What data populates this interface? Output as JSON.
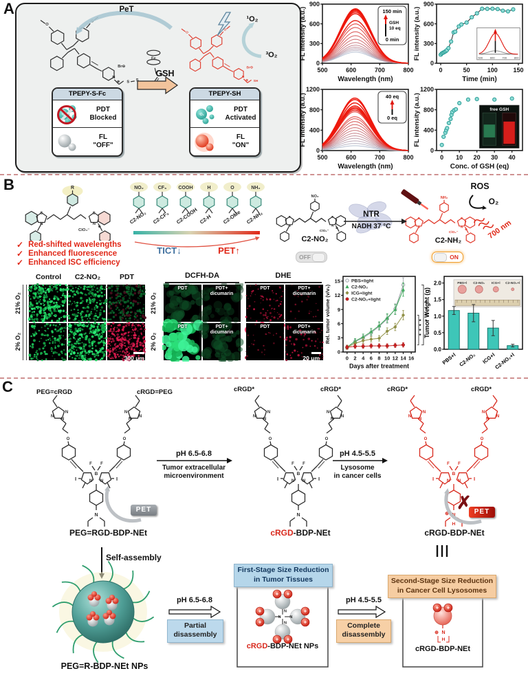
{
  "figure": {
    "panel_a_label": "A",
    "panel_b_label": "B",
    "panel_c_label": "C"
  },
  "atoms": {
    "s": "S",
    "n": "N",
    "b": "B",
    "f": "F",
    "i": "I",
    "o": "O",
    "fe": "Fe",
    "br": "Br⊖",
    "sh": "SH",
    "plus": "⊕",
    "clo4": "ClO₄⁻",
    "r": "R",
    "no2": "NO₂",
    "nh2": "NH₂",
    "h": "H"
  },
  "colors": {
    "accent_red": "#e02818",
    "teal": "#3ec6b8",
    "cyan_marker": "#8fdcd6",
    "peach_arrow": "#f2c49c",
    "card_header": "#ccd9e3",
    "blue_box": "#bcd9ec",
    "orange_box": "#f7d0a6"
  },
  "panel_a": {
    "pet": "PeT",
    "gsh": "GSH",
    "singlet_o2": "¹O₂",
    "triplet_o2": "³O₂",
    "left_card": {
      "title": "TPEPY-S-Fc",
      "pdt": "PDT",
      "pdt_state": "Blocked",
      "fl": "FL",
      "fl_state": "\"OFF\"",
      "o2": "¹O₂"
    },
    "right_card": {
      "title": "TPEPY-SH",
      "pdt": "PDT",
      "pdt_state": "Activated",
      "fl": "FL",
      "fl_state": "\"ON\"",
      "o2": "¹O₂"
    }
  },
  "panel_b": {
    "check": "✓",
    "features": [
      "Red-shifted wavelengths",
      "Enhanced fluorescence",
      "Enhanced ISC efficiency"
    ],
    "substituents": [
      {
        "group": "NO₂",
        "name": "C2-NO₂"
      },
      {
        "group": "CF₃",
        "name": "C2-CF₃"
      },
      {
        "group": "COOH",
        "name": "C2-COOH"
      },
      {
        "group": "H",
        "name": "C2-H"
      },
      {
        "group": "O",
        "name": "C2-OMe"
      },
      {
        "group": "NH₂",
        "name": "C2-NH₂"
      }
    ],
    "tict": "TICT",
    "tict_arrow": "↓",
    "pet": "PET",
    "pet_arrow": "↑",
    "scheme": {
      "left_name": "C2-NO₂",
      "right_name": "C2-NH₂",
      "enzyme": "NTR",
      "condition": "NADH 37 °C",
      "off": "OFF",
      "on": "ON",
      "ros": "ROS",
      "o2": "O₂",
      "nm": "700 nm"
    },
    "viability": {
      "columns": [
        "Control",
        "C2-NO₂",
        "PDT"
      ],
      "rows": [
        "21% O₂",
        "2% O₂"
      ],
      "scale": "300 μm"
    },
    "ros_imaging": {
      "groups": [
        "DCFH-DA",
        "DHE"
      ],
      "cell_labels": [
        "PDT",
        "PDT+\ndicumarin"
      ],
      "rows": [
        "21% O₂",
        "2% O₂"
      ],
      "scale": "20 μm"
    }
  },
  "panel_c": {
    "s1": {
      "left_tag": "PEG=cRGD",
      "right_tag": "cRGD=PEG",
      "name": "PEG=RGD-BDP-NEt",
      "pet": "PET"
    },
    "s2": {
      "tag": "cRGD*",
      "name_red": "cRGD",
      "name_black": "-BDP-NEt"
    },
    "s3": {
      "tag": "cRGD*",
      "name": "cRGD-BDP-NEt",
      "pet": "PET",
      "cross": "✗"
    },
    "arrow1": {
      "ph": "pH 6.5-6.8",
      "line1": "Tumor extracellular",
      "line2": "microenvironment"
    },
    "arrow2": {
      "ph": "pH 4.5-5.5",
      "line1": "Lysosome",
      "line2": "in cancer cells"
    },
    "self_assembly": "Self-assembly",
    "np_name": "PEG=R-BDP-NEt  NPs",
    "arrow3": {
      "ph": "pH 6.5-6.8",
      "box": "Partial\ndisassembly"
    },
    "arrow4": {
      "ph": "pH 4.5-5.5",
      "box": "Complete\ndisassembly"
    },
    "stage1": {
      "title": "First-Stage Size Reduction\nin Tumor Tissues",
      "label_red": "cRGD",
      "label_black": "-BDP-NEt  NPs"
    },
    "stage2": {
      "title": "Second-Stage Size Reduction\nin Cancer Cell Lysosomes",
      "label": "cRGD-BDP-NEt"
    }
  },
  "chart_data": [
    {
      "id": "a1",
      "type": "line",
      "subtype": "spectra",
      "xlabel": "Wavelength (nm)",
      "ylabel": "FL intensity (a.u.)",
      "xlim": [
        500,
        800
      ],
      "ylim": [
        0,
        900
      ],
      "xticks": [
        500,
        600,
        700,
        800
      ],
      "yticks": [
        0,
        300,
        600,
        900
      ],
      "peak_nm": 615,
      "sigma_nm": 53,
      "series_peak_heights": [
        170,
        195,
        220,
        245,
        275,
        315,
        365,
        420,
        480,
        545,
        600,
        650,
        755,
        780,
        800,
        815,
        830
      ],
      "legend": {
        "top": "150 min",
        "side1": "GSH",
        "side2": "10 eq",
        "bottom": "0 min"
      }
    },
    {
      "id": "a2",
      "type": "scatter",
      "connect": true,
      "xlabel": "Time (min)",
      "ylabel": "FL intensity (a.u.)",
      "xlim": [
        -8,
        158
      ],
      "ylim": [
        0,
        900
      ],
      "xticks": [
        0,
        50,
        100,
        150
      ],
      "yticks": [
        0,
        300,
        600,
        900
      ],
      "x": [
        0,
        2,
        4,
        6,
        8,
        10,
        12,
        15,
        20,
        25,
        28,
        35,
        40,
        50,
        60,
        70,
        80,
        90,
        100,
        110,
        120,
        130,
        140
      ],
      "y": [
        130,
        148,
        158,
        165,
        175,
        185,
        200,
        230,
        330,
        470,
        480,
        560,
        590,
        620,
        700,
        760,
        830,
        828,
        830,
        825,
        800,
        790,
        820
      ],
      "inset": {
        "type": "spectra_arrow",
        "xticks": [
          500,
          600,
          700,
          800
        ]
      }
    },
    {
      "id": "a3",
      "type": "line",
      "subtype": "spectra",
      "xlabel": "Wavelength (nm)",
      "ylabel": "FL intensity (a.u.)",
      "xlim": [
        500,
        800
      ],
      "ylim": [
        0,
        1200
      ],
      "xticks": [
        500,
        600,
        700,
        800
      ],
      "yticks": [
        0,
        400,
        800,
        1200
      ],
      "peak_nm": 613,
      "sigma_nm": 55,
      "series_peak_heights": [
        95,
        140,
        190,
        240,
        290,
        340,
        395,
        450,
        510,
        570,
        625,
        665,
        760,
        790,
        820,
        845,
        875,
        935,
        1000,
        1030
      ],
      "legend": {
        "top": "40 eq",
        "bottom": "0 eq"
      }
    },
    {
      "id": "a4",
      "type": "scatter",
      "connect": false,
      "xlabel": "Conc. of GSH (eq)",
      "ylabel": "FL intensity (a.u.)",
      "xlim": [
        -3,
        46
      ],
      "ylim": [
        0,
        1200
      ],
      "xticks": [
        0,
        10,
        20,
        30,
        40
      ],
      "yticks": [
        0,
        400,
        800,
        1200
      ],
      "x": [
        0,
        1,
        2,
        2.5,
        3,
        4,
        5,
        5.5,
        6,
        7,
        8,
        10,
        15,
        20,
        30,
        40
      ],
      "y": [
        110,
        270,
        350,
        400,
        440,
        540,
        620,
        700,
        755,
        790,
        810,
        930,
        1000,
        1010,
        1000,
        1020
      ],
      "inset": {
        "type": "cuvettes",
        "label": "free GSH"
      }
    },
    {
      "id": "b1",
      "type": "line",
      "xlabel": "Days after treatment",
      "ylabel": "Rel. tumor volume (v/v₀)",
      "xlim": [
        -1,
        17
      ],
      "ylim": [
        0,
        16
      ],
      "xticks": [
        0,
        2,
        4,
        6,
        8,
        10,
        12,
        14,
        16
      ],
      "yticks": [
        0,
        3,
        6,
        9,
        12,
        15
      ],
      "x": [
        0,
        2,
        4,
        6,
        8,
        10,
        12,
        14
      ],
      "series": [
        {
          "name": "PBS+light",
          "color": "#9aa0a6",
          "marker": "circle-open",
          "values": [
            1,
            2.2,
            3.0,
            4.1,
            5.4,
            7.0,
            9.1,
            14.2
          ]
        },
        {
          "name": "C2-NO₂",
          "color": "#3faa5c",
          "marker": "triangle",
          "values": [
            1,
            2.3,
            3.2,
            4.3,
            5.6,
            7.2,
            9.0,
            13.2
          ]
        },
        {
          "name": "ICG+light",
          "color": "#8f8f45",
          "marker": "diamond",
          "values": [
            1,
            1.8,
            2.4,
            2.7,
            2.9,
            4.4,
            5.3,
            7.8
          ]
        },
        {
          "name": "C2-NO₂+light",
          "color": "#cc2020",
          "marker": "circle",
          "values": [
            1,
            1.2,
            1.2,
            1.3,
            1.3,
            1.3,
            1.4,
            1.5
          ]
        }
      ],
      "significance": [
        "****",
        "****"
      ]
    },
    {
      "id": "b2",
      "type": "bar",
      "ylabel": "Tumor Weight (g)",
      "ylim": [
        0,
        2.2
      ],
      "yticks": [
        0.0,
        0.5,
        1.0,
        1.5,
        2.0
      ],
      "categories": [
        "PBS+l",
        "C2-NO₂",
        "ICG+l",
        "C2-NO₂+l"
      ],
      "values": [
        1.17,
        1.09,
        0.64,
        0.11
      ],
      "errors": [
        0.12,
        0.26,
        0.23,
        0.04
      ],
      "bar_color": "#3ec6b8",
      "inset": {
        "type": "tumor_photo",
        "labels": [
          "PBS+l",
          "C2-NO₂",
          "ICG+l",
          "C2-NO₂+l"
        ]
      }
    }
  ]
}
